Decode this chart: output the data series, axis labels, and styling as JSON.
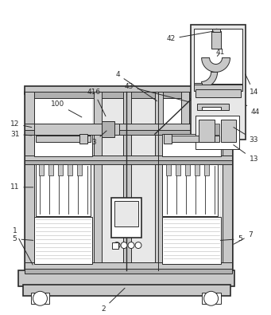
{
  "bg_color": "#ffffff",
  "dc": "#2a2a2a",
  "lgc": "#c8c8c8",
  "llgc": "#e8e8e8",
  "gc": "#999999",
  "mgc": "#b0b0b0",
  "figsize": [
    3.41,
    3.95
  ],
  "dpi": 100
}
